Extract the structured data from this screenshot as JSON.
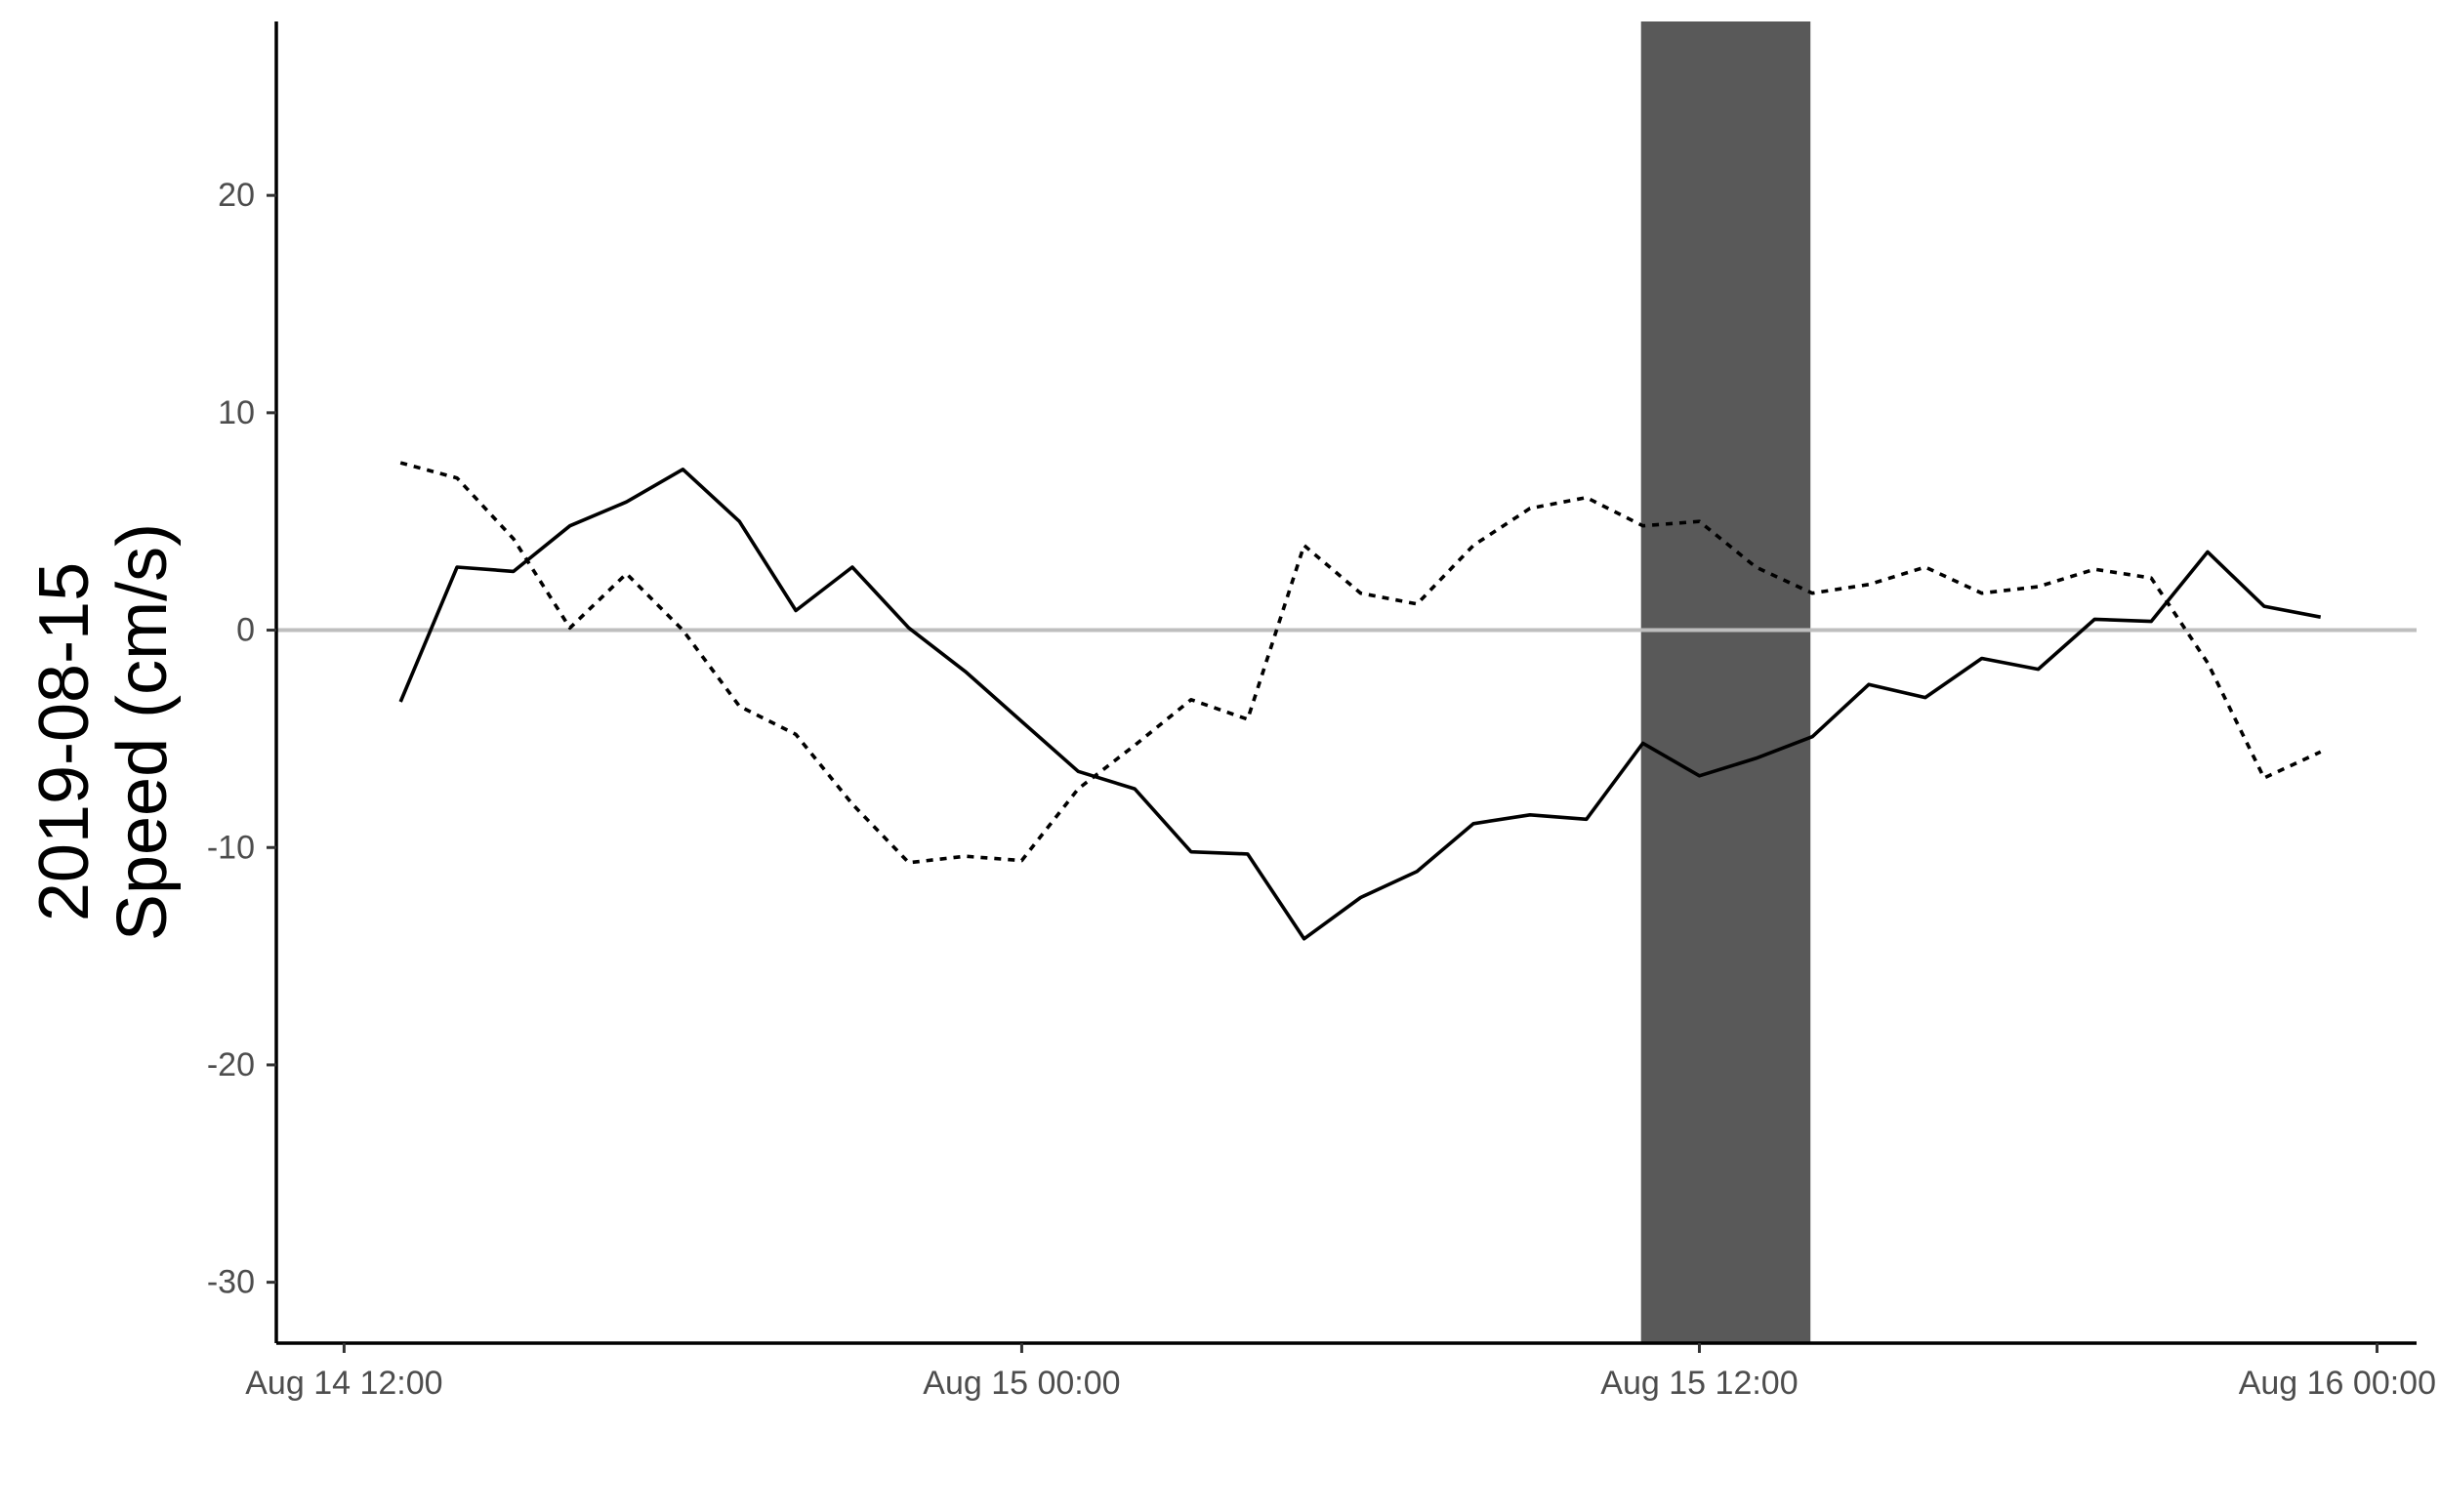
{
  "chart_data": {
    "type": "line",
    "title": "",
    "xlabel": "",
    "ylabel_lines": [
      "2019-08-15",
      "Speed (cm/s)"
    ],
    "ylim": [
      -32.8,
      28
    ],
    "xlim": [
      "2019-08-14T10:48",
      "2019-08-16T00:42"
    ],
    "y_ticks": [
      {
        "value": 20,
        "label": "20"
      },
      {
        "value": 10,
        "label": "10"
      },
      {
        "value": 0,
        "label": "0"
      },
      {
        "value": -10,
        "label": "-10"
      },
      {
        "value": -20,
        "label": "-20"
      },
      {
        "value": -30,
        "label": "-30"
      }
    ],
    "x_ticks": [
      {
        "value": "2019-08-14T12:00",
        "label": "Aug 14 12:00"
      },
      {
        "value": "2019-08-15T00:00",
        "label": "Aug 15 00:00"
      },
      {
        "value": "2019-08-15T12:00",
        "label": "Aug 15 12:00"
      },
      {
        "value": "2019-08-16T00:00",
        "label": "Aug 16 00:00"
      }
    ],
    "reference_line": {
      "y": 0,
      "color": "#bebebe"
    },
    "highlight_band": {
      "x_start": "2019-08-15T10:58",
      "x_end": "2019-08-15T13:58",
      "color": "#595959"
    },
    "grid": false,
    "legend": "none",
    "x": [
      "2019-08-14T13:00",
      "2019-08-14T14:00",
      "2019-08-14T15:00",
      "2019-08-14T16:00",
      "2019-08-14T17:00",
      "2019-08-14T18:00",
      "2019-08-14T19:00",
      "2019-08-14T20:00",
      "2019-08-14T21:00",
      "2019-08-14T22:00",
      "2019-08-14T23:00",
      "2019-08-15T00:00",
      "2019-08-15T01:00",
      "2019-08-15T02:00",
      "2019-08-15T03:00",
      "2019-08-15T04:00",
      "2019-08-15T05:00",
      "2019-08-15T06:00",
      "2019-08-15T07:00",
      "2019-08-15T08:00",
      "2019-08-15T09:00",
      "2019-08-15T10:00",
      "2019-08-15T11:00",
      "2019-08-15T12:00",
      "2019-08-15T13:00",
      "2019-08-15T14:00",
      "2019-08-15T15:00",
      "2019-08-15T16:00",
      "2019-08-15T17:00",
      "2019-08-15T18:00",
      "2019-08-15T19:00",
      "2019-08-15T20:00",
      "2019-08-15T21:00",
      "2019-08-15T22:00",
      "2019-08-15T23:00"
    ],
    "series": [
      {
        "style": "solid",
        "color": "#000000",
        "values": [
          -3.3,
          2.9,
          2.7,
          4.8,
          5.9,
          7.4,
          5.0,
          0.9,
          2.9,
          0.1,
          -1.9,
          -4.2,
          -6.5,
          -7.3,
          -10.2,
          -10.3,
          -14.2,
          -12.3,
          -11.1,
          -8.9,
          -8.5,
          -8.7,
          -5.2,
          -6.7,
          -5.9,
          -4.9,
          -2.5,
          -3.1,
          -1.3,
          -1.8,
          0.5,
          0.4,
          3.6,
          1.1,
          0.6
        ]
      },
      {
        "style": "dotted",
        "color": "#000000",
        "values": [
          7.7,
          7.0,
          4.2,
          0.1,
          2.6,
          0.0,
          -3.5,
          -4.8,
          -8.0,
          -10.7,
          -10.4,
          -10.6,
          -7.3,
          -5.3,
          -3.2,
          -4.1,
          3.9,
          1.7,
          1.2,
          3.9,
          5.6,
          6.1,
          4.8,
          5.0,
          2.9,
          1.7,
          2.1,
          2.9,
          1.7,
          2.0,
          2.8,
          2.4,
          -1.5,
          -6.8,
          -5.6
        ]
      }
    ]
  }
}
